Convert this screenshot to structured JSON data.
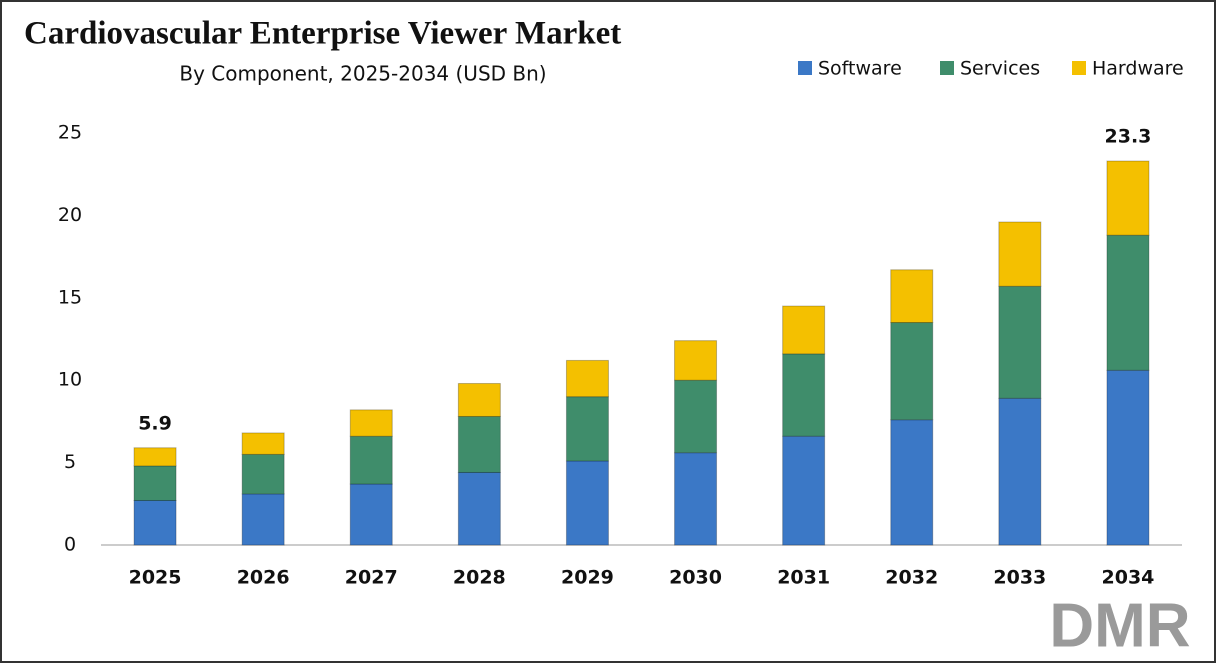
{
  "chart_data": {
    "type": "stacked_bar",
    "title": "Cardiovascular Enterprise Viewer Market",
    "subtitle": "By Component, 2025-2034 (USD Bn)",
    "categories": [
      "2025",
      "2026",
      "2027",
      "2028",
      "2029",
      "2030",
      "2031",
      "2032",
      "2033",
      "2034"
    ],
    "series": [
      {
        "name": "Software",
        "color": "#3b78c6",
        "values": [
          2.7,
          3.1,
          3.7,
          4.4,
          5.1,
          5.6,
          6.6,
          7.6,
          8.9,
          10.6
        ]
      },
      {
        "name": "Services",
        "color": "#3f8d6b",
        "values": [
          2.1,
          2.4,
          2.9,
          3.4,
          3.9,
          4.4,
          5.0,
          5.9,
          6.8,
          8.2
        ]
      },
      {
        "name": "Hardware",
        "color": "#f4c000",
        "values": [
          1.1,
          1.3,
          1.6,
          2.0,
          2.2,
          2.4,
          2.9,
          3.2,
          3.9,
          4.5
        ]
      }
    ],
    "annotations": [
      {
        "category": "2025",
        "text": "5.9"
      },
      {
        "category": "2034",
        "text": "23.3"
      }
    ],
    "ylim": [
      0,
      25
    ],
    "yticks": [
      0,
      5,
      10,
      15,
      20,
      25
    ],
    "legend": "top-right",
    "watermark": "DMR"
  }
}
